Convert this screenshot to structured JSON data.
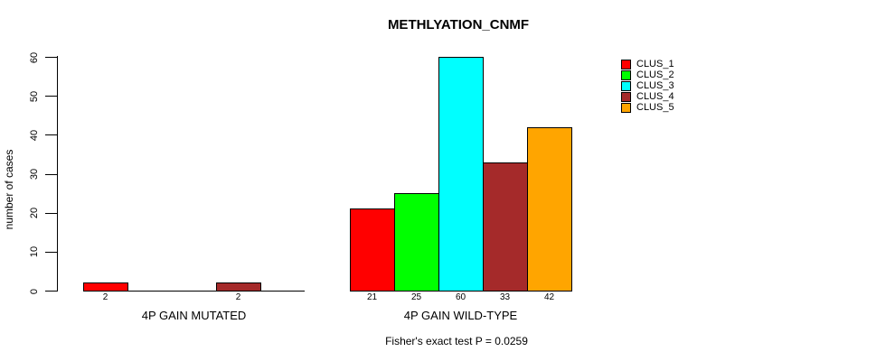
{
  "title": "METHLYATION_CNMF",
  "y_axis": {
    "label": "number of cases",
    "ticks": [
      "0",
      "10",
      "20",
      "30",
      "40",
      "50",
      "60"
    ]
  },
  "footer": "Fisher's exact test P = 0.0259",
  "legend": {
    "items": [
      {
        "label": "CLUS_1",
        "color": "#FF0000"
      },
      {
        "label": "CLUS_2",
        "color": "#00FF00"
      },
      {
        "label": "CLUS_3",
        "color": "#00FFFF"
      },
      {
        "label": "CLUS_4",
        "color": "#A52A2A"
      },
      {
        "label": "CLUS_5",
        "color": "#FFA500"
      }
    ]
  },
  "chart_data": {
    "type": "bar",
    "title": "METHLYATION_CNMF",
    "xlabel": "",
    "ylabel": "number of cases",
    "ylim": [
      0,
      60
    ],
    "yticks": [
      0,
      10,
      20,
      30,
      40,
      50,
      60
    ],
    "grid": false,
    "legend_position": "right-outside",
    "series_names": [
      "CLUS_1",
      "CLUS_2",
      "CLUS_3",
      "CLUS_4",
      "CLUS_5"
    ],
    "colors": [
      "#FF0000",
      "#00FF00",
      "#00FFFF",
      "#A52A2A",
      "#FFA500"
    ],
    "groups": [
      {
        "label": "4P GAIN MUTATED",
        "values": [
          2,
          0,
          0,
          2,
          0
        ],
        "bar_labels": [
          "2",
          "",
          "",
          "2",
          ""
        ]
      },
      {
        "label": "4P GAIN WILD-TYPE",
        "values": [
          21,
          25,
          60,
          33,
          42
        ],
        "bar_labels": [
          "21",
          "25",
          "60",
          "33",
          "42"
        ]
      }
    ],
    "annotation": "Fisher's exact test P = 0.0259"
  }
}
